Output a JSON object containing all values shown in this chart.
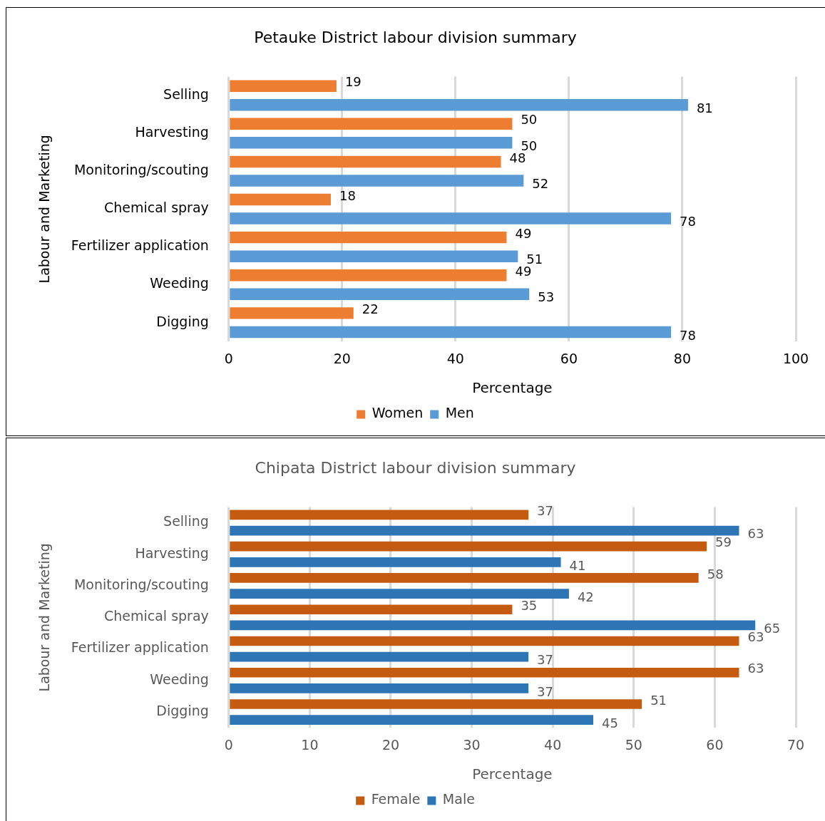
{
  "chart_data": [
    {
      "type": "bar",
      "orientation": "horizontal",
      "title": "Petauke District labour division summary",
      "xlabel": "Percentage",
      "ylabel": "Labour and Marketing",
      "categories": [
        "Selling",
        "Harvesting",
        "Monitoring/scouting",
        "Chemical spray",
        "Fertilizer application",
        "Weeding",
        "Digging"
      ],
      "series": [
        {
          "name": "Women",
          "color": "#ed7d31",
          "values": [
            19,
            50,
            48,
            18,
            49,
            49,
            22
          ]
        },
        {
          "name": "Men",
          "color": "#5b9bd5",
          "values": [
            81,
            50,
            52,
            78,
            51,
            53,
            78
          ]
        }
      ],
      "xlim": [
        0,
        100
      ],
      "xticks": [
        0,
        20,
        40,
        60,
        80,
        100
      ],
      "grid": "x",
      "legend": "bottom",
      "data_labels": true
    },
    {
      "type": "bar",
      "orientation": "horizontal",
      "title": "Chipata District labour division summary",
      "xlabel": "Percentage",
      "ylabel": "Labour and Marketing",
      "categories": [
        "Selling",
        "Harvesting",
        "Monitoring/scouting",
        "Chemical spray",
        "Fertilizer application",
        "Weeding",
        "Digging"
      ],
      "series": [
        {
          "name": "Female",
          "color": "#c55a11",
          "values": [
            37,
            59,
            58,
            35,
            63,
            63,
            51
          ]
        },
        {
          "name": "Male",
          "color": "#2e75b6",
          "values": [
            63,
            41,
            42,
            65,
            37,
            37,
            45
          ]
        }
      ],
      "xlim": [
        0,
        70
      ],
      "xticks": [
        0,
        10,
        20,
        30,
        40,
        50,
        60,
        70
      ],
      "grid": "x",
      "legend": "bottom",
      "data_labels": true
    }
  ]
}
